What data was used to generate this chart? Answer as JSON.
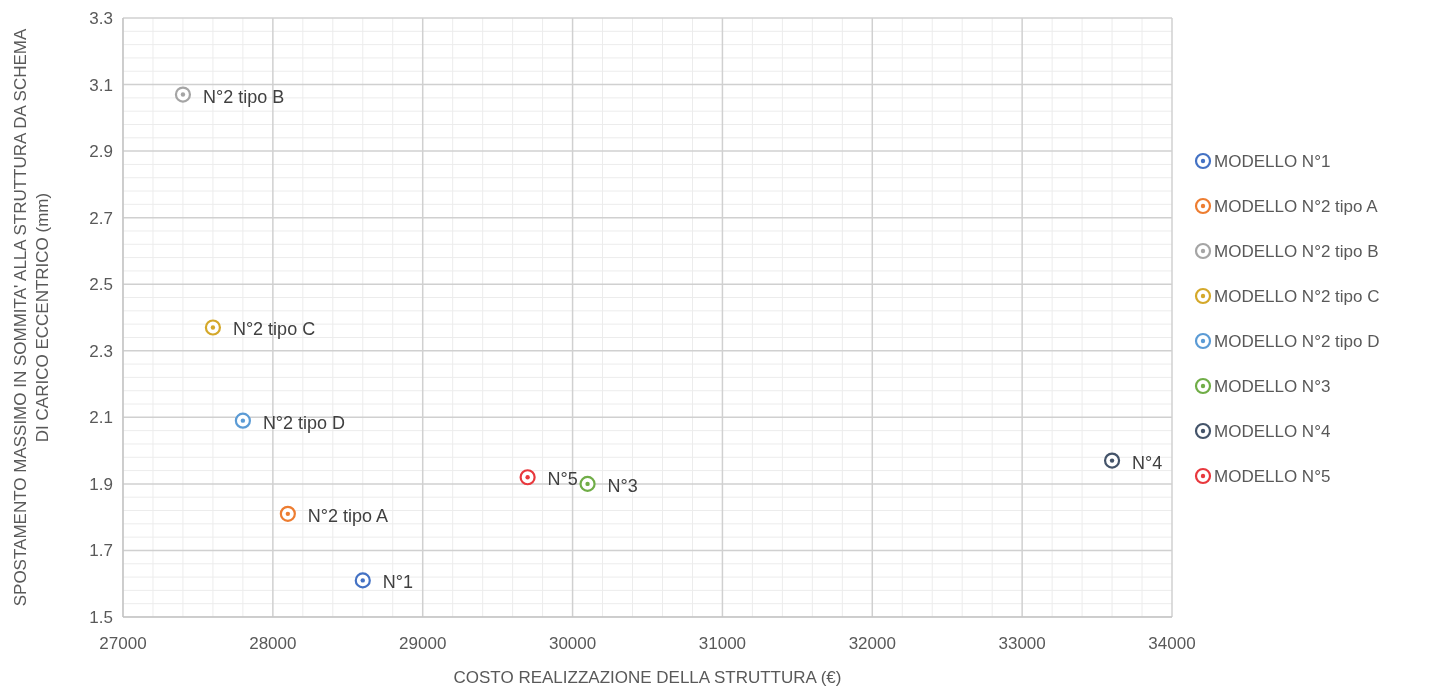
{
  "chart_data": {
    "type": "scatter",
    "xlabel": "COSTO REALIZZAZIONE DELLA STRUTTURA (€)",
    "ylabel": "SPOSTAMENTO MASSIMO IN SOMMITA' ALLA STRUTTURA DA SCHEMA DI CARICO ECCENTRICO (mm)",
    "xlim": [
      27000,
      34000
    ],
    "xticks": [
      27000,
      28000,
      29000,
      30000,
      31000,
      32000,
      33000,
      34000
    ],
    "ylim": [
      1.5,
      3.3
    ],
    "yticks": [
      1.5,
      1.7,
      1.9,
      2.1,
      2.3,
      2.5,
      2.7,
      2.9,
      3.1,
      3.3
    ],
    "grid": true,
    "legend": "right",
    "marker": "circle",
    "series": [
      {
        "name": "MODELLO N°1",
        "color": "#4472c4",
        "x": [
          28600
        ],
        "values": [
          1.61
        ]
      },
      {
        "name": "MODELLO N°2 tipo A",
        "color": "#ed7d31",
        "x": [
          28100
        ],
        "values": [
          1.81
        ]
      },
      {
        "name": "MODELLO N°2 tipo B",
        "color": "#a5a5a5",
        "x": [
          27400
        ],
        "values": [
          3.07
        ]
      },
      {
        "name": "MODELLO N°2 tipo C",
        "color": "#d4a82a",
        "x": [
          27600
        ],
        "values": [
          2.37
        ]
      },
      {
        "name": "MODELLO N°2 tipo D",
        "color": "#5b9bd5",
        "x": [
          27800
        ],
        "values": [
          2.09
        ]
      },
      {
        "name": "MODELLO N°3",
        "color": "#70ad47",
        "x": [
          30100
        ],
        "values": [
          1.9
        ]
      },
      {
        "name": "MODELLO N°4",
        "color": "#44546a",
        "x": [
          33600
        ],
        "values": [
          1.97
        ]
      },
      {
        "name": "MODELLO N°5",
        "color": "#e8383d",
        "x": [
          29700
        ],
        "values": [
          1.92
        ]
      }
    ],
    "annotations": [
      {
        "text": "N°1",
        "x": 28600,
        "y": 1.61
      },
      {
        "text": "N°2 tipo A",
        "x": 28100,
        "y": 1.81
      },
      {
        "text": "N°2 tipo B",
        "x": 27400,
        "y": 3.07
      },
      {
        "text": "N°2 tipo C",
        "x": 27600,
        "y": 2.37
      },
      {
        "text": "N°2 tipo D",
        "x": 27800,
        "y": 2.09
      },
      {
        "text": "N°3",
        "x": 30100,
        "y": 1.9
      },
      {
        "text": "N°4",
        "x": 33600,
        "y": 1.97
      },
      {
        "text": "N°5",
        "x": 29700,
        "y": 1.92
      }
    ]
  }
}
